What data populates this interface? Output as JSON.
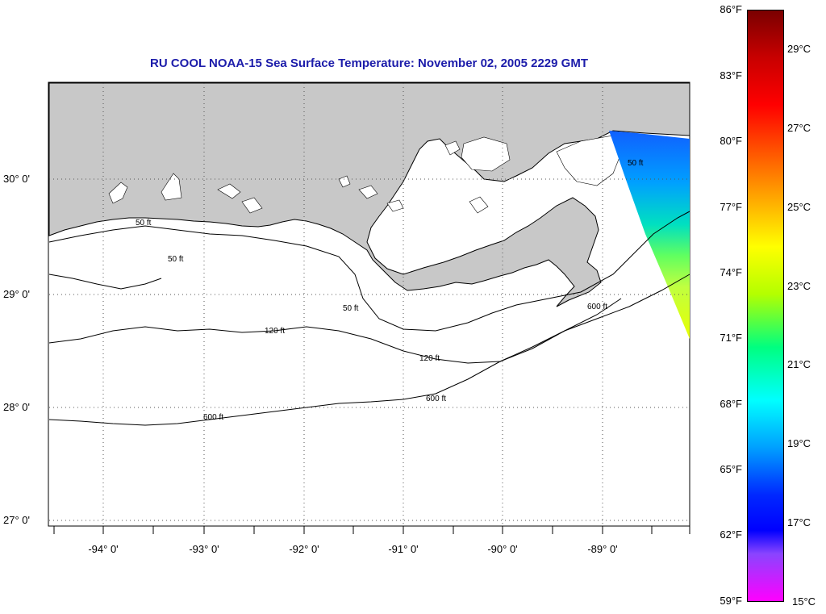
{
  "title": "RU COOL  NOAA-15  Sea Surface Temperature:  November 02, 2005 2229 GMT",
  "latitude_labels": [
    "30° 0'",
    "29° 0'",
    "28° 0'",
    "27° 0'"
  ],
  "longitude_labels": [
    "-94° 0'",
    "-93° 0'",
    "-92° 0'",
    "-91° 0'",
    "-90° 0'",
    "-89° 0'"
  ],
  "colorbar": {
    "fahrenheit": [
      "86°F",
      "83°F",
      "80°F",
      "77°F",
      "74°F",
      "71°F",
      "68°F",
      "65°F",
      "62°F",
      "59°F"
    ],
    "celsius": [
      "29°C",
      "27°C",
      "25°C",
      "23°C",
      "21°C",
      "19°C",
      "17°C",
      "15°C"
    ],
    "gradient_colors": [
      "#7a0000",
      "#ff0000",
      "#ff6a00",
      "#ffff00",
      "#00ff80",
      "#00ffff",
      "#0000ff",
      "#ff00ff"
    ]
  },
  "contour_labels": {
    "c50": "50 ft",
    "c120": "120 ft",
    "c600": "600 ft"
  },
  "colors": {
    "land": "#c8c8c8",
    "ocean": "#ffffff",
    "title": "#1c1caa"
  }
}
